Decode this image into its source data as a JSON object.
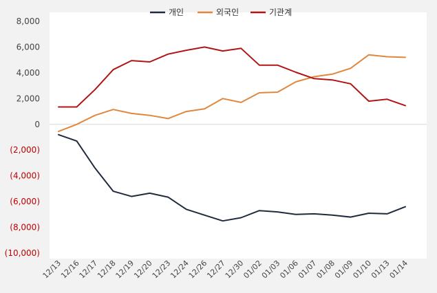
{
  "chart_data": {
    "type": "line",
    "categories": [
      "12/13",
      "12/16",
      "12/17",
      "12/18",
      "12/19",
      "12/20",
      "12/23",
      "12/24",
      "12/26",
      "12/27",
      "12/30",
      "01/02",
      "01/03",
      "01/06",
      "01/07",
      "01/08",
      "01/09",
      "01/10",
      "01/13",
      "01/14"
    ],
    "series": [
      {
        "name": "개인",
        "color": "#1f2a3c",
        "values": [
          -800,
          -1300,
          -3400,
          -5200,
          -5600,
          -5350,
          -5650,
          -6600,
          -7050,
          -7500,
          -7250,
          -6700,
          -6800,
          -7000,
          -6950,
          -7050,
          -7200,
          -6900,
          -6950,
          -6400
        ]
      },
      {
        "name": "외국인",
        "color": "#e0873d",
        "values": [
          -550,
          0,
          700,
          1150,
          850,
          700,
          450,
          1000,
          1200,
          2000,
          1700,
          2450,
          2500,
          3300,
          3700,
          3900,
          4350,
          5400,
          5250,
          5200
        ]
      },
      {
        "name": "기관계",
        "color": "#b01515",
        "values": [
          1350,
          1350,
          2700,
          4250,
          4950,
          4850,
          5450,
          5750,
          6000,
          5700,
          5900,
          4600,
          4600,
          4050,
          3550,
          3450,
          3150,
          1800,
          1950,
          1450
        ]
      }
    ],
    "y_ticks": [
      8000,
      6000,
      4000,
      2000,
      0,
      -2000,
      -4000,
      -6000,
      -8000,
      -10000
    ],
    "y_tick_labels": [
      "8,000",
      "6,000",
      "4,000",
      "2,000",
      "0",
      "(2,000)",
      "(4,000)",
      "(6,000)",
      "(8,000)",
      "(10,000)"
    ],
    "ylim": [
      -10000,
      8000
    ],
    "negative_tick_color": "#c00000",
    "positive_tick_color": "#444444",
    "grid": false,
    "legend_position": "top-center",
    "title": "",
    "xlabel": "",
    "ylabel": ""
  }
}
